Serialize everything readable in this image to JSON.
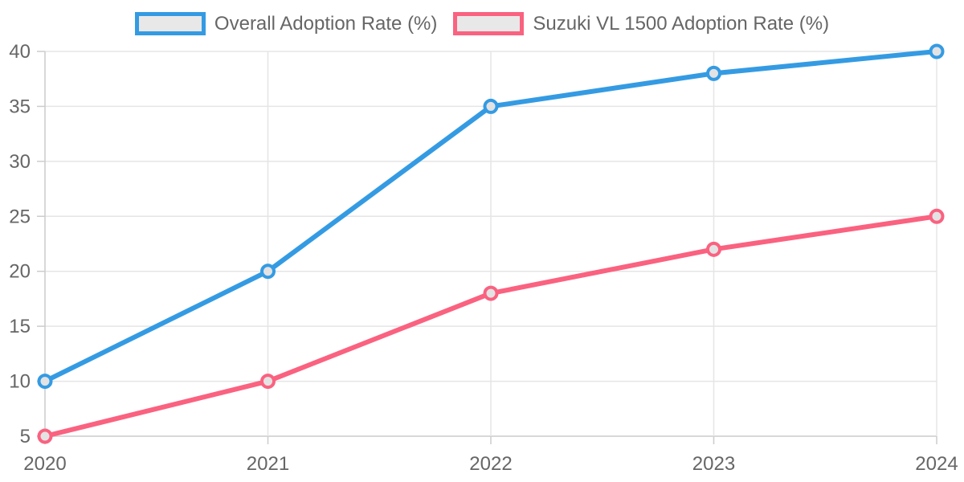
{
  "chart_data": {
    "type": "line",
    "x": [
      "2020",
      "2021",
      "2022",
      "2023",
      "2024"
    ],
    "series": [
      {
        "name": "Overall Adoption Rate (%)",
        "color": "#349BE3",
        "values": [
          10,
          20,
          35,
          38,
          40
        ]
      },
      {
        "name": "Suzuki VL 1500 Adoption Rate (%)",
        "color": "#FA6280",
        "values": [
          5,
          10,
          18,
          22,
          25
        ]
      }
    ],
    "title": "",
    "xlabel": "",
    "ylabel": "",
    "ylim": [
      5,
      40
    ],
    "yticks": [
      5,
      10,
      15,
      20,
      25,
      30,
      35,
      40
    ],
    "grid": true,
    "legend_position": "top",
    "colors": {
      "grid_line": "#E5E5E5",
      "axis_line": "#CCCCCC",
      "tick_mark": "#CCCCCC",
      "tick_label": "#666666",
      "point_fill": "#E3E3E3",
      "legend_swatch_fill": "#E8E8E8",
      "background": "#FFFFFF"
    }
  }
}
